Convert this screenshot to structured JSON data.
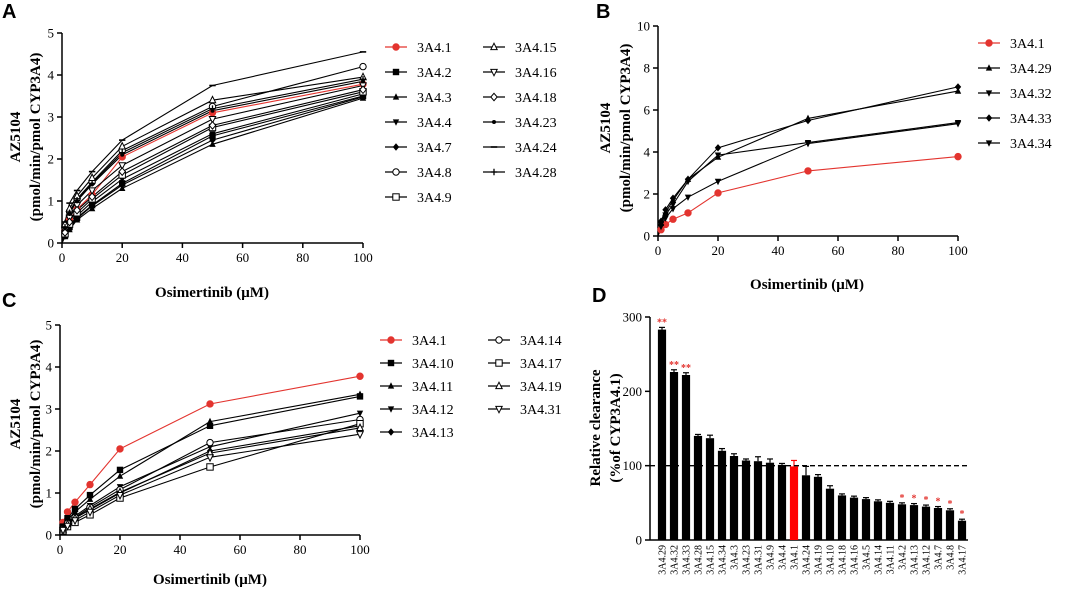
{
  "chart_data": [
    {
      "panel": "A",
      "type": "line",
      "xlabel": "Osimertinib (μM)",
      "ylabel": "AZ5104 (pmol/min/pmol CYP3A4)",
      "ylabel_lines": [
        "AZ5104",
        "(pmol/min/pmol CYP3A4)"
      ],
      "xlim": [
        0,
        100
      ],
      "ylim": [
        0,
        5
      ],
      "xticks": [
        0,
        20,
        40,
        60,
        80,
        100
      ],
      "yticks": [
        0,
        1,
        2,
        3,
        4,
        5
      ],
      "x": [
        0,
        1,
        2.5,
        5,
        10,
        20,
        50,
        100
      ],
      "series": [
        {
          "name": "3A4.1",
          "marker": "circle-filled",
          "color": "#e3342f",
          "values": [
            0,
            0.28,
            0.55,
            0.8,
            1.15,
            2.05,
            3.1,
            3.78
          ]
        },
        {
          "name": "3A4.2",
          "marker": "square-filled",
          "color": "#000000",
          "values": [
            0,
            0.18,
            0.38,
            0.6,
            0.9,
            1.42,
            2.55,
            3.5
          ]
        },
        {
          "name": "3A4.3",
          "marker": "triangle-up-filled",
          "color": "#000000",
          "values": [
            0,
            0.15,
            0.32,
            0.55,
            0.82,
            1.3,
            2.35,
            3.45
          ]
        },
        {
          "name": "3A4.4",
          "marker": "triangle-down-filled",
          "color": "#000000",
          "values": [
            0,
            0.2,
            0.4,
            0.65,
            0.98,
            1.52,
            2.6,
            3.55
          ]
        },
        {
          "name": "3A4.7",
          "marker": "diamond-filled",
          "color": "#000000",
          "values": [
            0,
            0.17,
            0.35,
            0.58,
            0.88,
            1.38,
            2.45,
            3.48
          ]
        },
        {
          "name": "3A4.8",
          "marker": "circle-open",
          "color": "#000000",
          "values": [
            0,
            0.4,
            0.75,
            1.05,
            1.45,
            2.2,
            3.25,
            4.2
          ]
        },
        {
          "name": "3A4.9",
          "marker": "square-open",
          "color": "#000000",
          "values": [
            0,
            0.22,
            0.45,
            0.72,
            1.05,
            1.62,
            2.75,
            3.6
          ]
        },
        {
          "name": "3A4.15",
          "marker": "triangle-up-open",
          "color": "#000000",
          "values": [
            0,
            0.45,
            0.82,
            1.12,
            1.55,
            2.3,
            3.4,
            3.95
          ]
        },
        {
          "name": "3A4.16",
          "marker": "triangle-down-open",
          "color": "#000000",
          "values": [
            0,
            0.3,
            0.6,
            0.9,
            1.25,
            1.85,
            2.95,
            3.75
          ]
        },
        {
          "name": "3A4.18",
          "marker": "diamond-open",
          "color": "#000000",
          "values": [
            0,
            0.25,
            0.5,
            0.78,
            1.1,
            1.7,
            2.8,
            3.65
          ]
        },
        {
          "name": "3A4.23",
          "marker": "dot",
          "color": "#000000",
          "values": [
            0,
            0.35,
            0.7,
            1.0,
            1.4,
            2.1,
            3.15,
            3.85
          ]
        },
        {
          "name": "3A4.24",
          "marker": "dash",
          "color": "#000000",
          "values": [
            0,
            0.5,
            0.95,
            1.25,
            1.7,
            2.45,
            3.75,
            4.55
          ]
        },
        {
          "name": "3A4.28",
          "marker": "plus",
          "color": "#000000",
          "values": [
            0,
            0.38,
            0.72,
            1.02,
            1.42,
            2.15,
            3.2,
            3.9
          ]
        }
      ]
    },
    {
      "panel": "B",
      "type": "line",
      "xlabel": "Osimertinib (μM)",
      "ylabel": "AZ5104 (pmol/min/pmol CYP3A4)",
      "ylabel_lines": [
        "AZ5104",
        "(pmol/min/pmol CYP3A4)"
      ],
      "xlim": [
        0,
        100
      ],
      "ylim": [
        0,
        10
      ],
      "xticks": [
        0,
        20,
        40,
        60,
        80,
        100
      ],
      "yticks": [
        0,
        2,
        4,
        6,
        8,
        10
      ],
      "x": [
        0,
        1,
        2.5,
        5,
        10,
        20,
        50,
        100
      ],
      "series": [
        {
          "name": "3A4.1",
          "marker": "circle-filled",
          "color": "#e3342f",
          "values": [
            0,
            0.3,
            0.55,
            0.8,
            1.1,
            2.05,
            3.1,
            3.78
          ]
        },
        {
          "name": "3A4.29",
          "marker": "triangle-up-filled",
          "color": "#000000",
          "values": [
            0,
            0.6,
            1.1,
            1.7,
            2.7,
            3.75,
            5.6,
            6.9
          ]
        },
        {
          "name": "3A4.32",
          "marker": "triangle-down-filled",
          "color": "#000000",
          "values": [
            0,
            0.45,
            0.85,
            1.3,
            1.85,
            2.6,
            4.4,
            5.35
          ]
        },
        {
          "name": "3A4.33",
          "marker": "diamond-filled",
          "color": "#000000",
          "values": [
            0,
            0.7,
            1.25,
            1.8,
            2.7,
            4.2,
            5.5,
            7.1
          ]
        },
        {
          "name": "3A4.34",
          "marker": "triangle-down-filled",
          "color": "#000000",
          "values": [
            0,
            0.55,
            1.0,
            1.5,
            2.6,
            3.85,
            4.45,
            5.4
          ]
        }
      ]
    },
    {
      "panel": "C",
      "type": "line",
      "xlabel": "Osimertinib (μM)",
      "ylabel": "AZ5104 (pmol/min/pmol CYP3A4)",
      "ylabel_lines": [
        "AZ5104",
        "(pmol/min/pmol CYP3A4)"
      ],
      "xlim": [
        0,
        100
      ],
      "ylim": [
        0,
        5
      ],
      "xticks": [
        0,
        20,
        40,
        60,
        80,
        100
      ],
      "yticks": [
        0,
        1,
        2,
        3,
        4,
        5
      ],
      "x": [
        0,
        1,
        2.5,
        5,
        10,
        20,
        50,
        100
      ],
      "series": [
        {
          "name": "3A4.1",
          "marker": "circle-filled",
          "color": "#e3342f",
          "values": [
            0,
            0.3,
            0.55,
            0.78,
            1.2,
            2.05,
            3.12,
            3.78
          ]
        },
        {
          "name": "3A4.10",
          "marker": "square-filled",
          "color": "#000000",
          "values": [
            0,
            0.2,
            0.4,
            0.62,
            0.95,
            1.55,
            2.6,
            3.3
          ]
        },
        {
          "name": "3A4.11",
          "marker": "triangle-up-filled",
          "color": "#000000",
          "values": [
            0,
            0.18,
            0.36,
            0.55,
            0.85,
            1.4,
            2.7,
            3.35
          ]
        },
        {
          "name": "3A4.12",
          "marker": "triangle-down-filled",
          "color": "#000000",
          "values": [
            0,
            0.15,
            0.3,
            0.45,
            0.7,
            1.15,
            2.1,
            2.9
          ]
        },
        {
          "name": "3A4.13",
          "marker": "diamond-filled",
          "color": "#000000",
          "values": [
            0,
            0.12,
            0.25,
            0.4,
            0.6,
            1.0,
            2.0,
            2.6
          ]
        },
        {
          "name": "3A4.14",
          "marker": "circle-open",
          "color": "#000000",
          "values": [
            0,
            0.14,
            0.28,
            0.42,
            0.66,
            1.08,
            2.2,
            2.75
          ]
        },
        {
          "name": "3A4.17",
          "marker": "square-open",
          "color": "#000000",
          "values": [
            0,
            0.1,
            0.2,
            0.3,
            0.48,
            0.88,
            1.62,
            2.65
          ]
        },
        {
          "name": "3A4.19",
          "marker": "triangle-up-open",
          "color": "#000000",
          "values": [
            0,
            0.13,
            0.26,
            0.4,
            0.62,
            1.02,
            1.95,
            2.55
          ]
        },
        {
          "name": "3A4.31",
          "marker": "triangle-down-open",
          "color": "#000000",
          "values": [
            0,
            0.12,
            0.22,
            0.35,
            0.55,
            0.95,
            1.85,
            2.4
          ]
        }
      ]
    },
    {
      "panel": "D",
      "type": "bar",
      "ylabel": "Relative clearance (%of CYP3A4.1)",
      "ylabel_lines": [
        "Relative clearance",
        "(%of CYP3A4.1)"
      ],
      "ylim": [
        0,
        300
      ],
      "yticks": [
        0,
        100,
        200,
        300
      ],
      "reference_line": 100,
      "highlight_category": "3A4.1",
      "highlight_color": "#ff0000",
      "bar_color": "#000000",
      "categories": [
        "3A4.29",
        "3A4.32",
        "3A4.33",
        "3A4.28",
        "3A4.15",
        "3A4.34",
        "3A4.3",
        "3A4.23",
        "3A4.31",
        "3A4.9",
        "3A4.4",
        "3A4.1",
        "3A4.24",
        "3A4.19",
        "3A4.10",
        "3A4.18",
        "3A4.16",
        "3A4.5",
        "3A4.14",
        "3A4.11",
        "3A4.2",
        "3A4.13",
        "3A4.12",
        "3A4.7",
        "3A4.8",
        "3A4.17"
      ],
      "values": [
        283,
        226,
        222,
        140,
        137,
        120,
        113,
        107,
        106,
        104,
        101,
        99,
        87,
        85,
        69,
        60,
        57,
        55,
        52,
        50,
        48,
        47,
        45,
        43,
        40,
        26
      ],
      "errors": [
        3,
        3,
        3,
        2,
        4,
        3,
        3,
        2,
        6,
        5,
        2,
        8,
        12,
        3,
        4,
        2,
        2,
        2,
        2,
        2,
        2,
        2,
        2,
        2,
        2,
        2
      ],
      "significance": [
        "**",
        "**",
        "**",
        "",
        "",
        "",
        "",
        "",
        "",
        "",
        "",
        "",
        "",
        "",
        "",
        "",
        "",
        "",
        "",
        "",
        "*",
        "*",
        "*",
        "*",
        "*",
        "*"
      ]
    }
  ]
}
